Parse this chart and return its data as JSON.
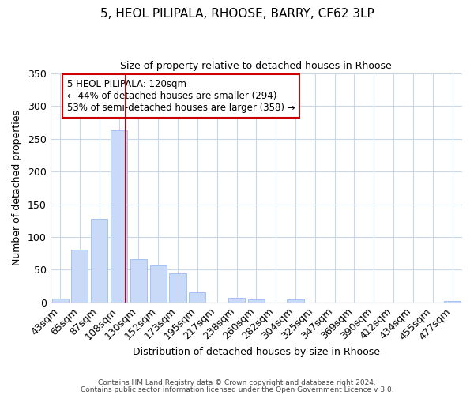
{
  "title1": "5, HEOL PILIPALA, RHOOSE, BARRY, CF62 3LP",
  "title2": "Size of property relative to detached houses in Rhoose",
  "xlabel": "Distribution of detached houses by size in Rhoose",
  "ylabel": "Number of detached properties",
  "categories": [
    "43sqm",
    "65sqm",
    "87sqm",
    "108sqm",
    "130sqm",
    "152sqm",
    "173sqm",
    "195sqm",
    "217sqm",
    "238sqm",
    "260sqm",
    "282sqm",
    "304sqm",
    "325sqm",
    "347sqm",
    "369sqm",
    "390sqm",
    "412sqm",
    "434sqm",
    "455sqm",
    "477sqm"
  ],
  "values": [
    6,
    81,
    128,
    263,
    66,
    56,
    44,
    15,
    0,
    7,
    5,
    0,
    4,
    0,
    0,
    0,
    0,
    0,
    0,
    0,
    2
  ],
  "bar_color": "#c9daf8",
  "bar_edge_color": "#a4c2f4",
  "vline_color": "#cc0000",
  "vline_x_index": 3,
  "annotation_title": "5 HEOL PILIPALA: 120sqm",
  "annotation_line1": "← 44% of detached houses are smaller (294)",
  "annotation_line2": "53% of semi-detached houses are larger (358) →",
  "annotation_box_color": "#ffffff",
  "annotation_box_edge": "#cc0000",
  "footer1": "Contains HM Land Registry data © Crown copyright and database right 2024.",
  "footer2": "Contains public sector information licensed under the Open Government Licence v 3.0.",
  "ylim": [
    0,
    350
  ],
  "background_color": "#ffffff",
  "grid_color": "#c8d8e8"
}
